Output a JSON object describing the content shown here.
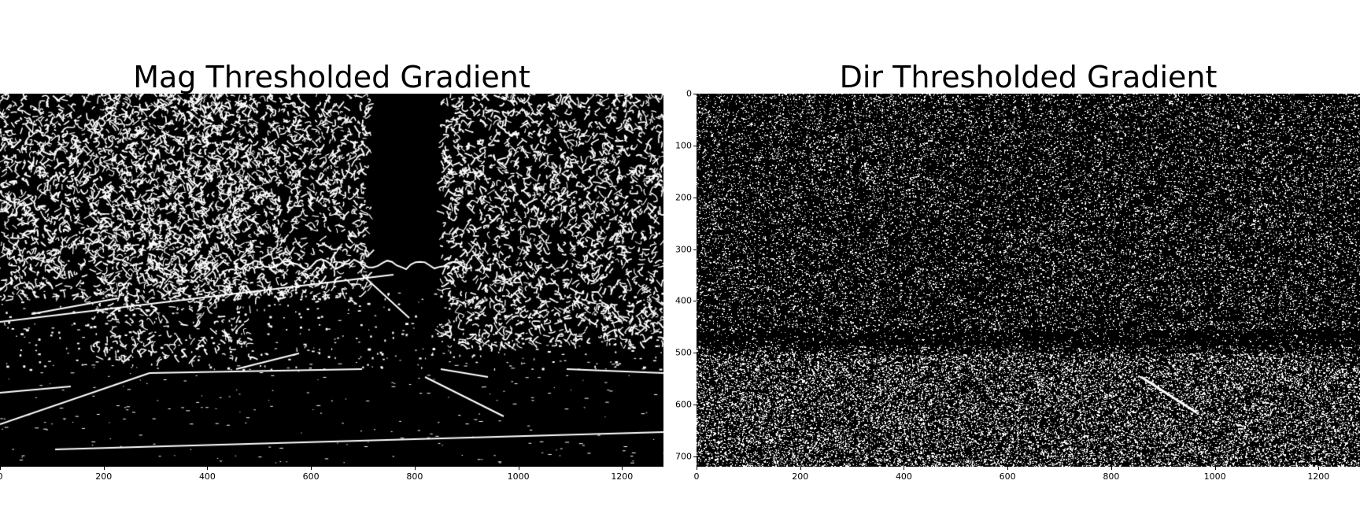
{
  "panels": [
    {
      "id": "magnitude",
      "title": "Mag Thresholded Gradient",
      "x_ticks": [
        "0",
        "200",
        "400",
        "600",
        "800",
        "1000",
        "1200"
      ],
      "y_ticks": []
    },
    {
      "id": "direction",
      "title": "Dir Thresholded Gradient",
      "x_ticks": [
        "0",
        "200",
        "400",
        "600",
        "800",
        "1000",
        "1200"
      ],
      "y_ticks": [
        "0",
        "100",
        "200",
        "300",
        "400",
        "500",
        "600",
        "700"
      ]
    }
  ],
  "colors": {
    "pixel_on": "#ffffff",
    "pixel_off": "#000000",
    "background": "#ffffff"
  }
}
